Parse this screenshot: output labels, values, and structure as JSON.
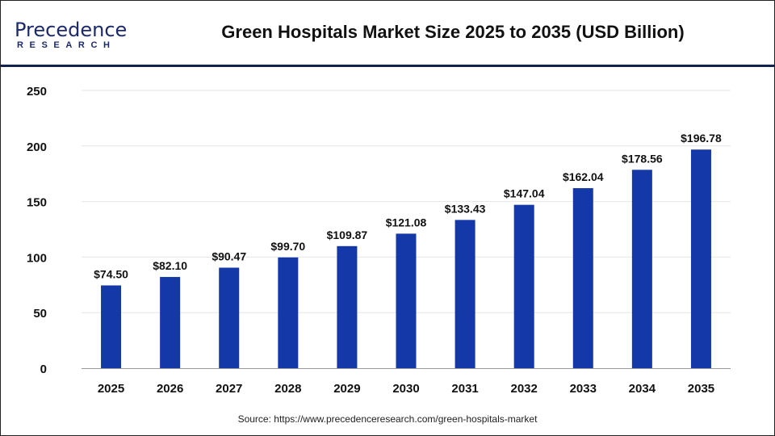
{
  "logo": {
    "main": "Precedence",
    "sub": "RESEARCH"
  },
  "header": {
    "title": "Green Hospitals Market Size 2025 to 2035 (USD Billion)"
  },
  "source": "Source: https://www.precedenceresearch.com/green-hospitals-market",
  "chart_data": {
    "type": "bar",
    "title": "Green Hospitals Market Size 2025 to 2035 (USD Billion)",
    "categories": [
      "2025",
      "2026",
      "2027",
      "2028",
      "2029",
      "2030",
      "2031",
      "2032",
      "2033",
      "2034",
      "2035"
    ],
    "values": [
      74.5,
      82.1,
      90.47,
      99.7,
      109.87,
      121.08,
      133.43,
      147.04,
      162.04,
      178.56,
      196.78
    ],
    "data_labels": [
      "$74.50",
      "$82.10",
      "$90.47",
      "$99.70",
      "$109.87",
      "$121.08",
      "$133.43",
      "$147.04",
      "$162.04",
      "$178.56",
      "$196.78"
    ],
    "ylim": [
      0,
      250
    ],
    "yticks": [
      0,
      50,
      100,
      150,
      200,
      250
    ],
    "grid": true,
    "bar_color": "#1538a8",
    "xlabel": "",
    "ylabel": ""
  }
}
